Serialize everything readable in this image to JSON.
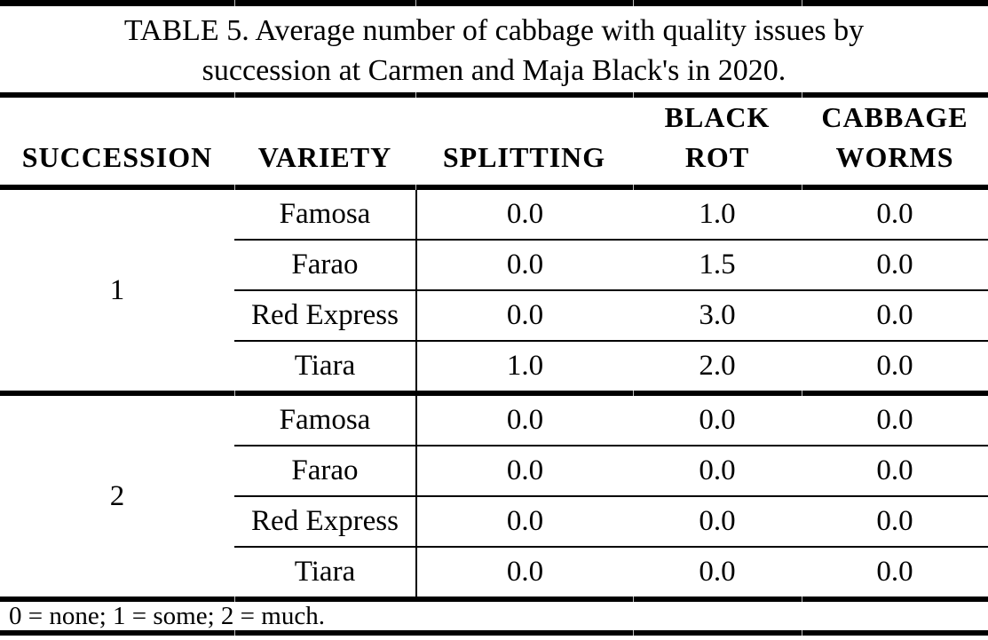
{
  "title": "TABLE 5. Average number of cabbage with quality issues by\nsuccession at Carmen and Maja Black's in 2020.",
  "columns": {
    "succession": "SUCCESSION",
    "variety": "VARIETY",
    "splitting": "SPLITTING",
    "black_rot": "BLACK\nROT",
    "cabbage_worms": "CABBAGE\nWORMS"
  },
  "groups": [
    {
      "succession": "1",
      "rows": [
        {
          "variety": "Famosa",
          "splitting": "0.0",
          "black_rot": "1.0",
          "cabbage_worms": "0.0"
        },
        {
          "variety": "Farao",
          "splitting": "0.0",
          "black_rot": "1.5",
          "cabbage_worms": "0.0"
        },
        {
          "variety": "Red Express",
          "splitting": "0.0",
          "black_rot": "3.0",
          "cabbage_worms": "0.0"
        },
        {
          "variety": "Tiara",
          "splitting": "1.0",
          "black_rot": "2.0",
          "cabbage_worms": "0.0"
        }
      ]
    },
    {
      "succession": "2",
      "rows": [
        {
          "variety": "Famosa",
          "splitting": "0.0",
          "black_rot": "0.0",
          "cabbage_worms": "0.0"
        },
        {
          "variety": "Farao",
          "splitting": "0.0",
          "black_rot": "0.0",
          "cabbage_worms": "0.0"
        },
        {
          "variety": "Red Express",
          "splitting": "0.0",
          "black_rot": "0.0",
          "cabbage_worms": "0.0"
        },
        {
          "variety": "Tiara",
          "splitting": "0.0",
          "black_rot": "0.0",
          "cabbage_worms": "0.0"
        }
      ]
    }
  ],
  "legend": "0 = none; 1 = some; 2 = much.",
  "colors": {
    "text": "#000000",
    "background": "#ffffff",
    "rule": "#000000"
  }
}
